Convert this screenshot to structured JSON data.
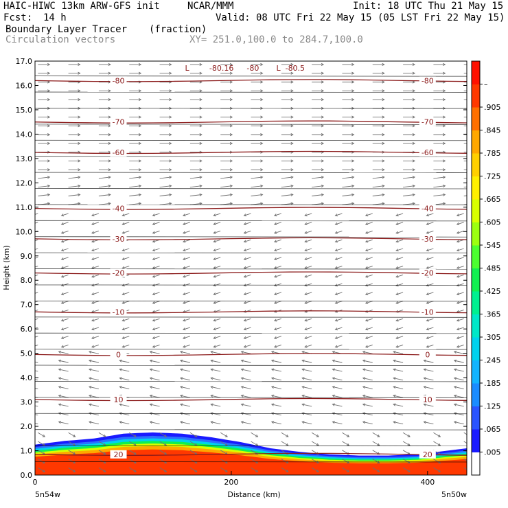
{
  "header": {
    "line1_left": "HAIC-HIWC 13km ARW-GFS init",
    "line1_mid": "NCAR/MMM",
    "line1_right": "Init: 18 UTC Thu 21 May 15",
    "line2_left": "Fcst:",
    "line2_hours": "14 h",
    "line2_right": "Valid: 08 UTC Fri 22 May 15 (05 LST Fri 22 May 15)",
    "field_name": "Boundary Layer Tracer",
    "field_units": "(fraction)",
    "vectors_label": "Circulation vectors",
    "xy_label": "XY= 251.0,100.0 to 284.7,100.0"
  },
  "chart_data": {
    "type": "heatmap",
    "xlabel": "Distance (km)",
    "ylabel": "Height (km)",
    "xlim": [
      0,
      440
    ],
    "ylim": [
      0.0,
      17.0
    ],
    "x_ticks": [
      "0",
      "200",
      "400"
    ],
    "x_tick_values": [
      0,
      200,
      400
    ],
    "y_ticks": [
      "0.0",
      "1.0",
      "2.0",
      "3.0",
      "4.0",
      "5.0",
      "6.0",
      "7.0",
      "8.0",
      "9.0",
      "10.0",
      "11.0",
      "12.0",
      "13.0",
      "14.0",
      "15.0",
      "16.0",
      "17.0"
    ],
    "x_end_labels": {
      "left": "5n54w",
      "right": "5n50w"
    },
    "colorbar": {
      "labels": [
        ".005",
        ".065",
        ".125",
        ".185",
        ".245",
        ".305",
        ".365",
        ".425",
        ".485",
        ".545",
        ".605",
        ".665",
        ".725",
        ".785",
        ".845",
        ".905",
        "–"
      ],
      "colors": [
        "#ffffff",
        "#1a1aff",
        "#2a54ff",
        "#1a8cff",
        "#12b4ff",
        "#00d2ee",
        "#00e8c8",
        "#00f090",
        "#10f050",
        "#4cff30",
        "#9cff10",
        "#d8ff00",
        "#fff000",
        "#ffd000",
        "#ffa800",
        "#ff7000",
        "#ff3800",
        "#ff1000"
      ]
    },
    "tracer_top_km": [
      [
        0,
        1.25
      ],
      [
        30,
        1.4
      ],
      [
        60,
        1.5
      ],
      [
        90,
        1.7
      ],
      [
        120,
        1.75
      ],
      [
        150,
        1.7
      ],
      [
        180,
        1.55
      ],
      [
        210,
        1.35
      ],
      [
        240,
        1.1
      ],
      [
        270,
        0.95
      ],
      [
        300,
        0.85
      ],
      [
        330,
        0.8
      ],
      [
        360,
        0.8
      ],
      [
        390,
        0.85
      ],
      [
        420,
        1.0
      ],
      [
        440,
        1.1
      ]
    ],
    "temperature_contours": [
      {
        "label": "20",
        "level_km": 0.85
      },
      {
        "label": "10",
        "level_km": 3.1
      },
      {
        "label": "0",
        "level_km": 4.95
      },
      {
        "label": "-10",
        "level_km": 6.7
      },
      {
        "label": "-20",
        "level_km": 8.3
      },
      {
        "label": "-30",
        "level_km": 9.7
      },
      {
        "label": "-40",
        "level_km": 10.95
      },
      {
        "label": "-60",
        "level_km": 13.25
      },
      {
        "label": "-70",
        "level_km": 14.5
      },
      {
        "label": "-80",
        "level_km": 16.2
      }
    ],
    "top_annotations": [
      "L",
      "-80.16",
      "-80",
      "L",
      "-80.5"
    ]
  }
}
